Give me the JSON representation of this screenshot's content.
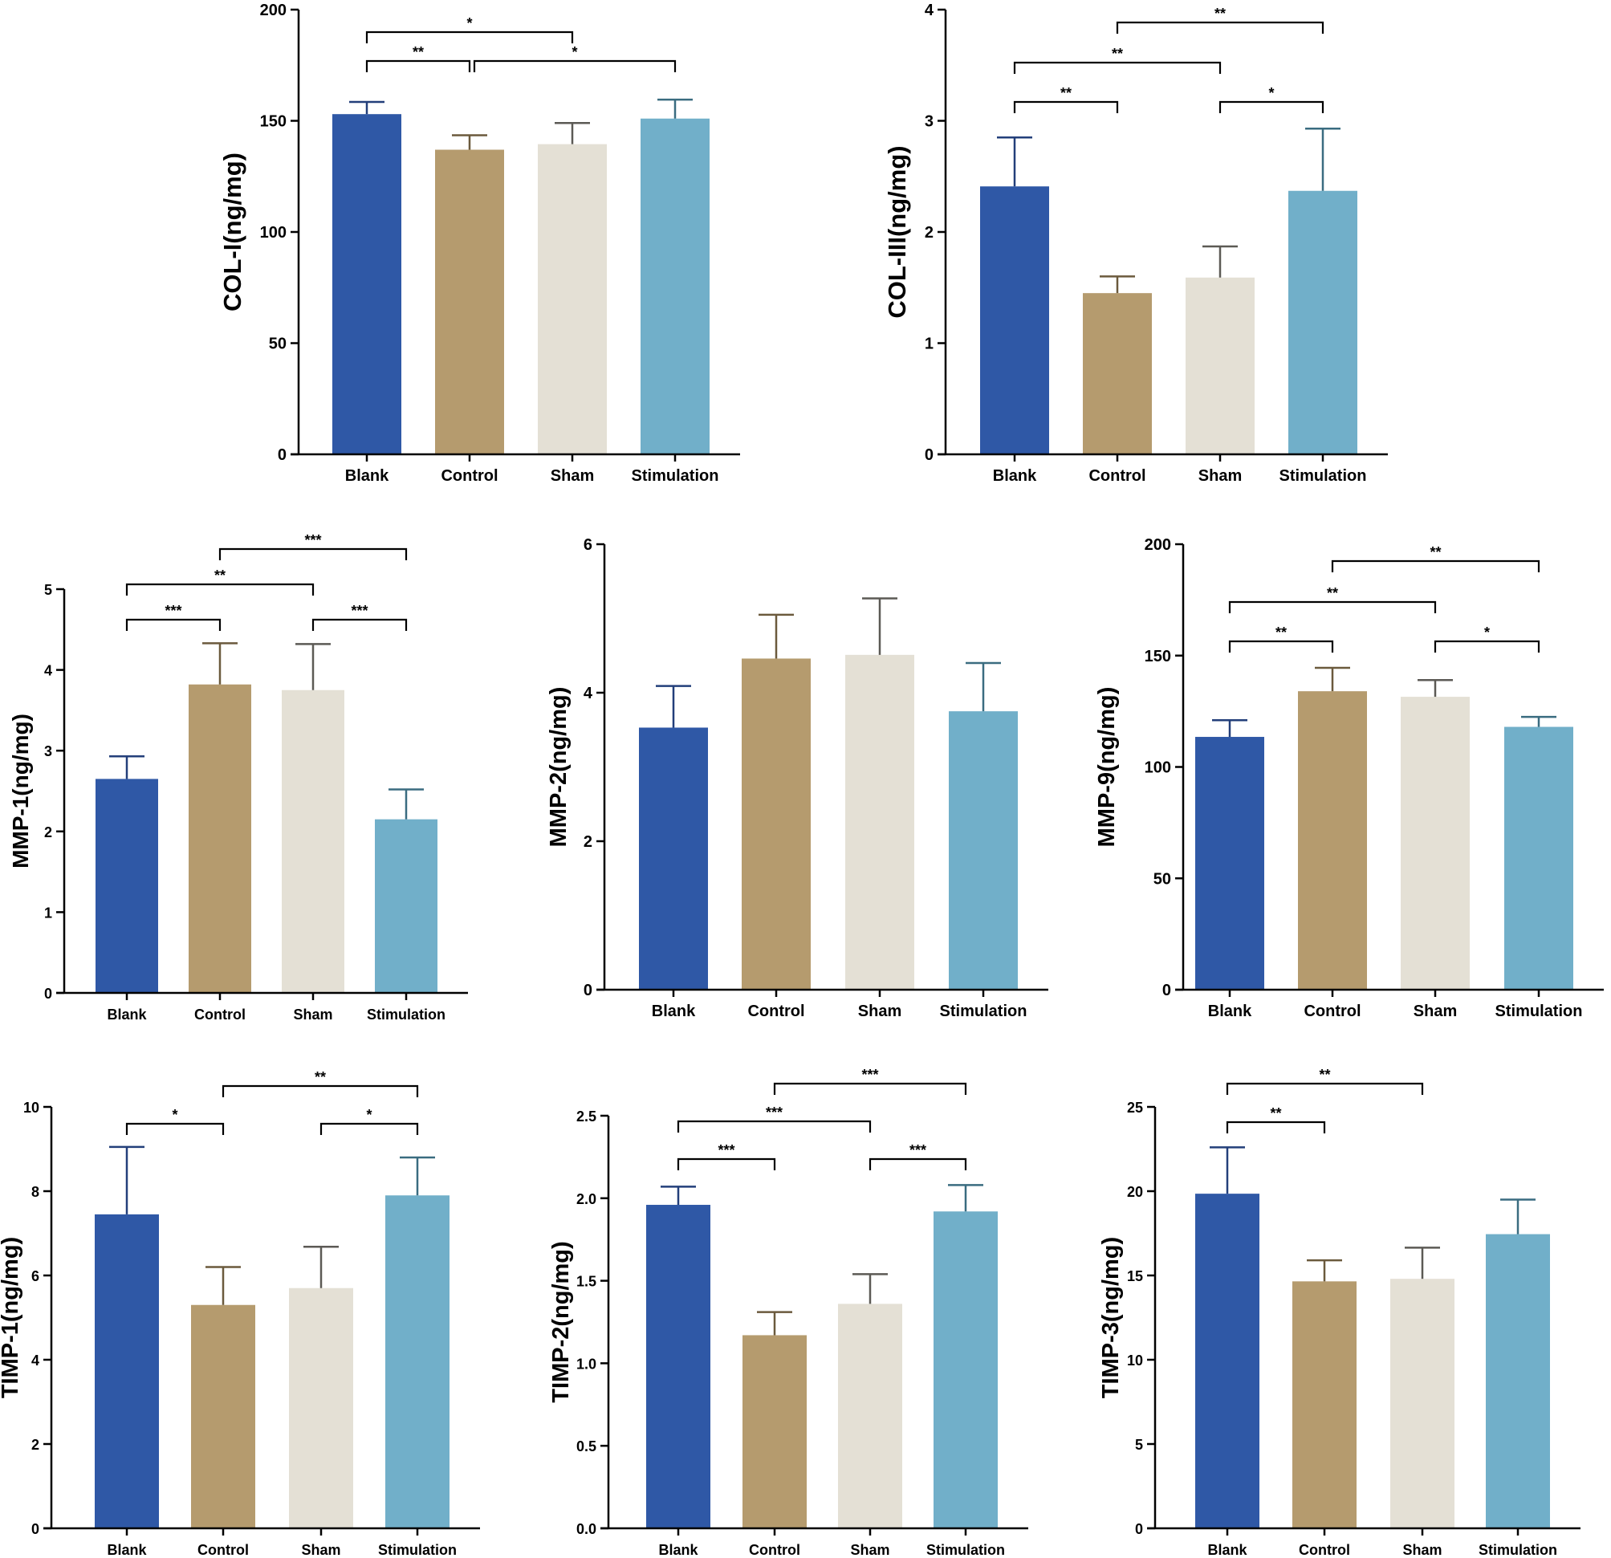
{
  "colors": {
    "Blank": "#2f58a6",
    "Control": "#b59b6e",
    "Sham": "#e4e0d5",
    "Stimulation": "#71afc9"
  },
  "chart_data": [
    {
      "type": "bar",
      "categories": [
        "Blank",
        "Control",
        "Sham",
        "Stimulation"
      ],
      "values": [
        153,
        137,
        139.5,
        151
      ],
      "errors": [
        5.5,
        6.5,
        9.5,
        8.5
      ],
      "ylabel": "COL-I(ng/mg)",
      "ylim": [
        0,
        200
      ],
      "yticks": [
        "0",
        "50",
        "100",
        "150",
        "200"
      ],
      "significance": [
        {
          "from": 0,
          "to": 1,
          "label": "**"
        },
        {
          "from": 1,
          "to": 3,
          "label": "*"
        },
        {
          "from": 0,
          "to": 2,
          "label": "*"
        }
      ]
    },
    {
      "type": "bar",
      "categories": [
        "Blank",
        "Control",
        "Sham",
        "Stimulation"
      ],
      "values": [
        2.41,
        1.45,
        1.59,
        2.37
      ],
      "errors": [
        0.44,
        0.15,
        0.28,
        0.56
      ],
      "ylabel": "COL-III(ng/mg)",
      "ylim": [
        0,
        4
      ],
      "yticks": [
        "0",
        "1",
        "2",
        "3",
        "4"
      ],
      "significance": [
        {
          "from": 0,
          "to": 1,
          "label": "**"
        },
        {
          "from": 2,
          "to": 3,
          "label": "*"
        },
        {
          "from": 0,
          "to": 2,
          "label": "**"
        },
        {
          "from": 1,
          "to": 3,
          "label": "**"
        }
      ]
    },
    {
      "type": "bar",
      "categories": [
        "Blank",
        "Control",
        "Sham",
        "Stimulation"
      ],
      "values": [
        2.65,
        3.82,
        3.75,
        2.15
      ],
      "errors": [
        0.28,
        0.51,
        0.57,
        0.37
      ],
      "ylabel": "MMP-1(ng/mg)",
      "ylim": [
        0,
        5
      ],
      "yticks": [
        "0",
        "1",
        "2",
        "3",
        "4",
        "5"
      ],
      "significance": [
        {
          "from": 0,
          "to": 1,
          "label": "***"
        },
        {
          "from": 2,
          "to": 3,
          "label": "***"
        },
        {
          "from": 0,
          "to": 2,
          "label": "**"
        },
        {
          "from": 1,
          "to": 3,
          "label": "***"
        }
      ]
    },
    {
      "type": "bar",
      "categories": [
        "Blank",
        "Control",
        "Sham",
        "Stimulation"
      ],
      "values": [
        3.53,
        4.46,
        4.51,
        3.75
      ],
      "errors": [
        0.56,
        0.59,
        0.76,
        0.65
      ],
      "ylabel": "MMP-2(ng/mg)",
      "ylim": [
        0,
        6
      ],
      "yticks": [
        "0",
        "2",
        "4",
        "6"
      ],
      "significance": []
    },
    {
      "type": "bar",
      "categories": [
        "Blank",
        "Control",
        "Sham",
        "Stimulation"
      ],
      "values": [
        113.5,
        134,
        131.5,
        118
      ],
      "errors": [
        7.5,
        10.5,
        7.5,
        4.5
      ],
      "ylabel": "MMP-9(ng/mg)",
      "ylim": [
        0,
        200
      ],
      "yticks": [
        "0",
        "50",
        "100",
        "150",
        "200"
      ],
      "significance": [
        {
          "from": 0,
          "to": 1,
          "label": "**"
        },
        {
          "from": 2,
          "to": 3,
          "label": "*"
        },
        {
          "from": 0,
          "to": 2,
          "label": "**"
        },
        {
          "from": 1,
          "to": 3,
          "label": "**"
        }
      ]
    },
    {
      "type": "bar",
      "categories": [
        "Blank",
        "Control",
        "Sham",
        "Stimulation"
      ],
      "values": [
        7.45,
        5.3,
        5.7,
        7.9
      ],
      "errors": [
        1.6,
        0.9,
        0.98,
        0.9
      ],
      "ylabel": "TIMP-1(ng/mg)",
      "ylim": [
        0,
        10
      ],
      "yticks": [
        "0",
        "2",
        "4",
        "6",
        "8",
        "10"
      ],
      "significance": [
        {
          "from": 0,
          "to": 1,
          "label": "*"
        },
        {
          "from": 2,
          "to": 3,
          "label": "*"
        },
        {
          "from": 1,
          "to": 3,
          "label": "**"
        }
      ]
    },
    {
      "type": "bar",
      "categories": [
        "Blank",
        "Control",
        "Sham",
        "Stimulation"
      ],
      "values": [
        1.96,
        1.17,
        1.36,
        1.92
      ],
      "errors": [
        0.11,
        0.14,
        0.18,
        0.16
      ],
      "ylabel": "TIMP-2(ng/mg)",
      "ylim": [
        0,
        2.5
      ],
      "yticks": [
        "0.0",
        "0.5",
        "1.0",
        "1.5",
        "2.0",
        "2.5"
      ],
      "significance": [
        {
          "from": 0,
          "to": 1,
          "label": "***"
        },
        {
          "from": 2,
          "to": 3,
          "label": "***"
        },
        {
          "from": 0,
          "to": 2,
          "label": "***"
        },
        {
          "from": 1,
          "to": 3,
          "label": "***"
        }
      ]
    },
    {
      "type": "bar",
      "categories": [
        "Blank",
        "Control",
        "Sham",
        "Stimulation"
      ],
      "values": [
        19.85,
        14.65,
        14.8,
        17.45
      ],
      "errors": [
        2.75,
        1.25,
        1.85,
        2.05
      ],
      "ylabel": "TIMP-3(ng/mg)",
      "ylim": [
        0,
        25
      ],
      "yticks": [
        "0",
        "5",
        "10",
        "15",
        "20",
        "25"
      ],
      "significance": [
        {
          "from": 0,
          "to": 1,
          "label": "**"
        },
        {
          "from": 0,
          "to": 2,
          "label": "**"
        }
      ]
    }
  ]
}
